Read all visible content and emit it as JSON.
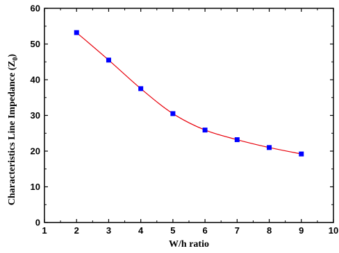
{
  "chart_data": {
    "type": "line",
    "xlabel": "W/h ratio",
    "ylabel_main": "Characteristics Line Impedance (Z",
    "ylabel_sub": "0",
    "ylabel_end": ")",
    "xlim": [
      1,
      10
    ],
    "ylim": [
      0,
      60
    ],
    "x_ticks": [
      1,
      2,
      3,
      4,
      5,
      6,
      7,
      8,
      9,
      10
    ],
    "y_ticks": [
      0,
      10,
      20,
      30,
      40,
      50,
      60
    ],
    "grid": false,
    "line_color": "#e8000b",
    "marker_color": "#0000ff",
    "series": [
      {
        "x": [
          2,
          3,
          4,
          5,
          6,
          7,
          8,
          9
        ],
        "values": [
          53.2,
          45.5,
          37.5,
          30.5,
          25.9,
          23.2,
          21.0,
          19.2
        ]
      }
    ]
  }
}
